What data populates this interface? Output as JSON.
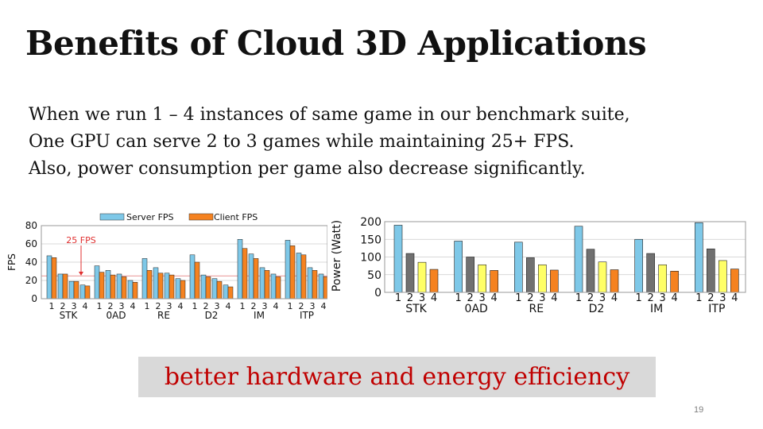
{
  "slide": {
    "title": "Benefits of Cloud 3D Applications",
    "lines": [
      "When we run 1 – 4 instances of same game in our benchmark suite,",
      "One GPU can serve 2 to 3 games while maintaining 25+ FPS.",
      "Also,  power consumption per game also decrease significantly."
    ],
    "callout": "better hardware and energy efficiency",
    "slide_number": "19"
  },
  "chart_data": [
    {
      "type": "bar",
      "ylabel": "FPS",
      "ylim": [
        0,
        80
      ],
      "yticks": [
        0,
        20,
        40,
        60,
        80
      ],
      "groups": [
        "STK",
        "0AD",
        "RE",
        "D2",
        "IM",
        "ITP"
      ],
      "instances": [
        "1",
        "2",
        "3",
        "4"
      ],
      "legend": [
        "Server FPS",
        "Client FPS"
      ],
      "annotation": "25 FPS",
      "reference_line": 25,
      "colors": {
        "server": "#7ec8e8",
        "client": "#f58220"
      },
      "series": [
        {
          "name": "Server FPS",
          "values": [
            [
              47,
              27,
              19,
              15
            ],
            [
              36,
              31,
              27,
              20
            ],
            [
              44,
              34,
              28,
              22
            ],
            [
              48,
              26,
              22,
              15
            ],
            [
              65,
              49,
              34,
              27
            ],
            [
              64,
              50,
              34,
              27
            ]
          ]
        },
        {
          "name": "Client FPS",
          "values": [
            [
              45,
              27,
              19,
              14
            ],
            [
              29,
              26,
              24,
              18
            ],
            [
              31,
              28,
              26,
              20
            ],
            [
              40,
              24,
              19,
              13
            ],
            [
              55,
              44,
              31,
              24
            ],
            [
              58,
              48,
              31,
              24
            ]
          ]
        }
      ]
    },
    {
      "type": "bar",
      "ylabel": "Power (Watt)",
      "ylim": [
        0,
        200
      ],
      "yticks": [
        0,
        50,
        100,
        150,
        200
      ],
      "groups": [
        "STK",
        "0AD",
        "RE",
        "D2",
        "IM",
        "ITP"
      ],
      "instances": [
        "1",
        "2",
        "3",
        "4"
      ],
      "colors": [
        "#7ec8e8",
        "#707070",
        "#ffff66",
        "#f58220"
      ],
      "values": [
        [
          190,
          110,
          85,
          65
        ],
        [
          145,
          100,
          78,
          62
        ],
        [
          142,
          98,
          78,
          63
        ],
        [
          187,
          122,
          86,
          64
        ],
        [
          150,
          110,
          78,
          60
        ],
        [
          197,
          123,
          90,
          66
        ]
      ]
    }
  ]
}
